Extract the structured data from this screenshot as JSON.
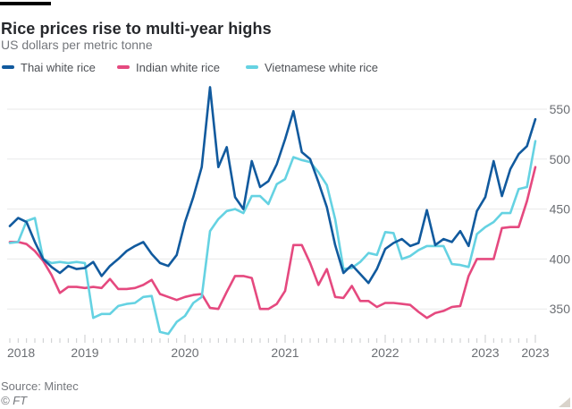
{
  "header": {
    "title": "Rice prices rise to multi-year highs",
    "subtitle": "US dollars per metric tonne"
  },
  "footer": {
    "source": "Source: Mintec",
    "copyright": "© FT"
  },
  "chart_data": {
    "type": "line",
    "title": "Rice prices rise to multi-year highs",
    "ylabel": "US dollars per metric tonne",
    "grid": true,
    "legend_position": "top",
    "y_axis_side": "right",
    "yticks": [
      350,
      400,
      450,
      500,
      550
    ],
    "ylim": [
      320,
      580
    ],
    "xtick_years": [
      "2018",
      "2019",
      "2020",
      "2021",
      "2022",
      "2023"
    ],
    "x_end_label": "2023",
    "x": [
      "2018-04",
      "2018-05",
      "2018-06",
      "2018-07",
      "2018-08",
      "2018-09",
      "2018-10",
      "2018-11",
      "2018-12",
      "2019-01",
      "2019-02",
      "2019-03",
      "2019-04",
      "2019-05",
      "2019-06",
      "2019-07",
      "2019-08",
      "2019-09",
      "2019-10",
      "2019-11",
      "2019-12",
      "2020-01",
      "2020-02",
      "2020-03",
      "2020-04",
      "2020-05",
      "2020-06",
      "2020-07",
      "2020-08",
      "2020-09",
      "2020-10",
      "2020-11",
      "2020-12",
      "2021-01",
      "2021-02",
      "2021-03",
      "2021-04",
      "2021-05",
      "2021-06",
      "2021-07",
      "2021-08",
      "2021-09",
      "2021-10",
      "2021-11",
      "2021-12",
      "2022-01",
      "2022-02",
      "2022-03",
      "2022-04",
      "2022-05",
      "2022-06",
      "2022-07",
      "2022-08",
      "2022-09",
      "2022-10",
      "2022-11",
      "2022-12",
      "2023-01",
      "2023-02",
      "2023-03",
      "2023-04",
      "2023-05",
      "2023-06",
      "2023-07"
    ],
    "series": [
      {
        "name": "Thai white rice",
        "color": "#115a9e",
        "values": [
          433,
          441,
          437,
          417,
          400,
          392,
          386,
          393,
          390,
          391,
          397,
          383,
          393,
          400,
          408,
          413,
          417,
          405,
          396,
          393,
          404,
          437,
          462,
          492,
          572,
          492,
          512,
          462,
          450,
          498,
          472,
          478,
          495,
          520,
          548,
          507,
          500,
          477,
          452,
          414,
          386,
          394,
          385,
          376,
          390,
          410,
          416,
          420,
          413,
          416,
          449,
          414,
          420,
          417,
          428,
          413,
          448,
          462,
          498,
          463,
          490,
          505,
          513,
          540
        ]
      },
      {
        "name": "Indian white rice",
        "color": "#e5497f",
        "values": [
          417,
          417,
          415,
          408,
          398,
          384,
          366,
          372,
          372,
          371,
          372,
          371,
          380,
          370,
          370,
          371,
          374,
          379,
          365,
          362,
          359,
          362,
          364,
          365,
          351,
          350,
          367,
          383,
          383,
          381,
          350,
          350,
          355,
          368,
          414,
          414,
          396,
          374,
          390,
          362,
          361,
          373,
          358,
          358,
          352,
          356,
          356,
          355,
          354,
          347,
          341,
          346,
          348,
          352,
          353,
          383,
          400,
          400,
          400,
          431,
          432,
          432,
          458,
          492
        ]
      },
      {
        "name": "Vietnamese white rice",
        "color": "#65d2e2",
        "values": [
          416,
          417,
          438,
          441,
          400,
          396,
          397,
          396,
          397,
          396,
          341,
          345,
          345,
          353,
          355,
          356,
          362,
          363,
          327,
          325,
          337,
          343,
          356,
          362,
          428,
          440,
          448,
          450,
          446,
          463,
          463,
          455,
          475,
          480,
          502,
          499,
          497,
          487,
          474,
          440,
          390,
          391,
          397,
          406,
          404,
          427,
          426,
          400,
          403,
          409,
          413,
          413,
          413,
          395,
          394,
          392,
          425,
          432,
          437,
          446,
          446,
          470,
          472,
          518
        ]
      }
    ]
  }
}
